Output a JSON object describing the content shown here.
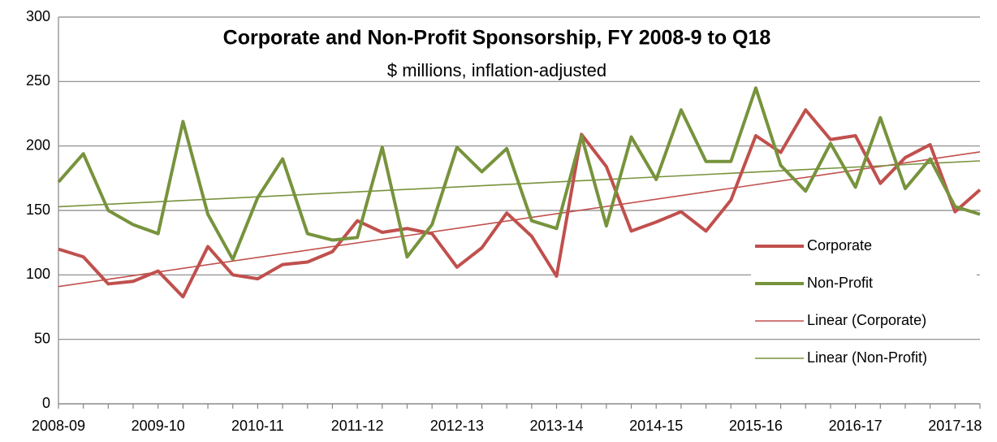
{
  "chart_data": {
    "type": "line",
    "title": "Corporate and Non-Profit Sponsorship, FY 2008-9 to Q18",
    "subtitle": "$ millions, inflation-adjusted",
    "categories": [
      "2008-09",
      null,
      null,
      null,
      "2009-10",
      null,
      null,
      null,
      "2010-11",
      null,
      null,
      null,
      "2011-12",
      null,
      null,
      null,
      "2012-13",
      null,
      null,
      null,
      "2013-14",
      null,
      null,
      null,
      "2014-15",
      null,
      null,
      null,
      "2015-16",
      null,
      null,
      null,
      "2016-17",
      null,
      null,
      null,
      "2017-18",
      null
    ],
    "series": [
      {
        "name": "Corporate",
        "color": "#c0504d",
        "values": [
          120,
          114,
          93,
          95,
          103,
          83,
          122,
          100,
          97,
          108,
          110,
          118,
          142,
          133,
          136,
          132,
          106,
          121,
          148,
          130,
          99,
          209,
          184,
          134,
          141,
          149,
          134,
          158,
          208,
          195,
          228,
          205,
          208,
          171,
          191,
          201,
          149,
          166
        ]
      },
      {
        "name": "Non-Profit",
        "color": "#77933c",
        "values": [
          172,
          194,
          150,
          139,
          132,
          219,
          147,
          112,
          160,
          190,
          132,
          127,
          129,
          199,
          114,
          139,
          199,
          180,
          198,
          142,
          136,
          208,
          138,
          207,
          174,
          228,
          188,
          188,
          245,
          185,
          165,
          202,
          168,
          222,
          167,
          190,
          153,
          147
        ]
      }
    ],
    "trendlines": [
      {
        "name": "Linear (Corporate)",
        "series": 0
      },
      {
        "name": "Linear (Non-Profit)",
        "series": 1
      }
    ],
    "ylim": [
      0,
      300
    ],
    "yticks": [
      0,
      50,
      100,
      150,
      200,
      250,
      300
    ],
    "grid": true
  }
}
